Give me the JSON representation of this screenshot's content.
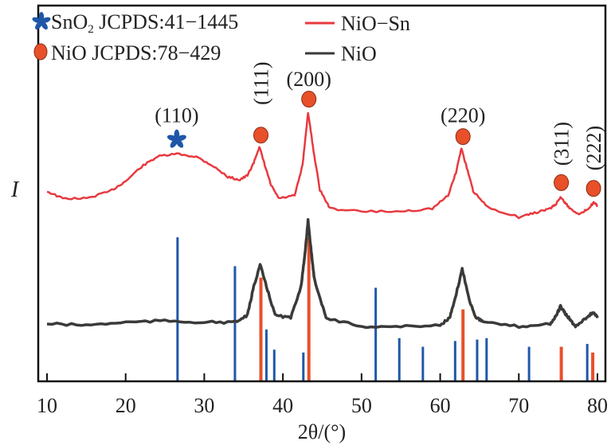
{
  "chart_data": {
    "type": "line",
    "title": "",
    "xlabel": "2θ/(°)",
    "ylabel": "I",
    "xlim": [
      10,
      80
    ],
    "ylim": [
      0,
      261
    ],
    "xticks": [
      10,
      20,
      30,
      40,
      50,
      60,
      70,
      80
    ],
    "grid": false,
    "colors": {
      "nio_sn": "#e8393f",
      "nio": "#3a3a3a",
      "sno2_ref": "#1f57a8",
      "nio_ref": "#e8502a"
    },
    "legend_right": {
      "placement": "top-right",
      "entries": [
        {
          "label": "NiO−Sn"
        },
        {
          "label": "NiO"
        }
      ]
    },
    "legend_left": {
      "placement": "top-left",
      "entries": [
        {
          "marker": "asterisk",
          "label_main": "SnO",
          "label_sub": "2",
          "label_rest": " JCPDS:41−1445"
        },
        {
          "marker": "circle",
          "label_main": "NiO JCPDS:78−429"
        }
      ]
    },
    "series": [
      {
        "name": "NiO−Sn",
        "x": [
          10,
          12,
          15,
          18,
          20,
          22,
          24,
          26.5,
          29,
          31,
          33,
          34.5,
          35.5,
          36.3,
          37.0,
          37.7,
          38.5,
          39.5,
          41.5,
          42.5,
          43.2,
          43.9,
          44.7,
          46,
          50,
          55,
          59,
          61,
          62,
          62.7,
          63.4,
          64.2,
          66,
          70,
          72,
          74,
          74.7,
          75.3,
          75.9,
          76.5,
          77.8,
          78.8,
          79.5,
          80
        ],
        "y": [
          132,
          127,
          127,
          132,
          139,
          149,
          156,
          158,
          156,
          150,
          142,
          140,
          143,
          152,
          163,
          150,
          136,
          127,
          129,
          150,
          187,
          160,
          133,
          120,
          118,
          118,
          120,
          129,
          145,
          162,
          148,
          132,
          121,
          114,
          117,
          120,
          123,
          128,
          124,
          120,
          116,
          120,
          124,
          122
        ]
      },
      {
        "name": "NiO",
        "x": [
          10,
          15,
          20,
          25,
          30,
          34,
          35.5,
          36.3,
          37.1,
          37.9,
          39,
          41,
          42.3,
          42.8,
          43.2,
          43.6,
          44,
          45.5,
          50,
          55,
          60,
          61.2,
          61.8,
          62.8,
          63.8,
          64.5,
          65.5,
          70,
          74,
          74.7,
          75.3,
          75.9,
          76.5,
          77.2,
          78.5,
          79.5,
          80
        ],
        "y": [
          40,
          39,
          41,
          42,
          41,
          41,
          46,
          66,
          81,
          66,
          46,
          44,
          66,
          88,
          112,
          90,
          71,
          44,
          38,
          38,
          39,
          44,
          55,
          78,
          55,
          45,
          41,
          38,
          40,
          45,
          52,
          47,
          43,
          38,
          44,
          48,
          44
        ]
      }
    ],
    "reference_patterns": [
      {
        "name": "SnO2 JCPDS:41-1445",
        "x": [
          26.6,
          33.9,
          37.9,
          38.9,
          42.6,
          51.8,
          54.8,
          57.8,
          61.9,
          64.7,
          65.9,
          71.3,
          78.7
        ],
        "intensity": [
          100,
          80,
          36,
          22,
          20,
          65,
          30,
          24,
          28,
          29,
          30,
          24,
          26
        ]
      },
      {
        "name": "NiO JCPDS:78-429",
        "x": [
          37.2,
          43.3,
          62.9,
          75.4,
          79.4
        ],
        "intensity": [
          72,
          100,
          50,
          24,
          20
        ]
      }
    ],
    "annotations": [
      {
        "label": "(110)",
        "x": 26.5,
        "marker": "asterisk",
        "marker_y": 168,
        "label_y": 185,
        "rotated": false
      },
      {
        "label": "(111)",
        "x": 37.2,
        "marker": "circle",
        "marker_y": 171,
        "label_y": 207,
        "rotated": true
      },
      {
        "label": "(200)",
        "x": 43.3,
        "marker": "circle",
        "marker_y": 196,
        "label_y": 210,
        "rotated": false
      },
      {
        "label": "(220)",
        "x": 62.9,
        "marker": "circle",
        "marker_y": 170,
        "label_y": 185,
        "rotated": false
      },
      {
        "label": "(311)",
        "x": 75.4,
        "marker": "circle",
        "marker_y": 138,
        "label_y": 165,
        "rotated": true
      },
      {
        "label": "(222)",
        "x": 79.5,
        "marker": "circle",
        "marker_y": 134,
        "label_y": 162,
        "rotated": true
      }
    ]
  }
}
